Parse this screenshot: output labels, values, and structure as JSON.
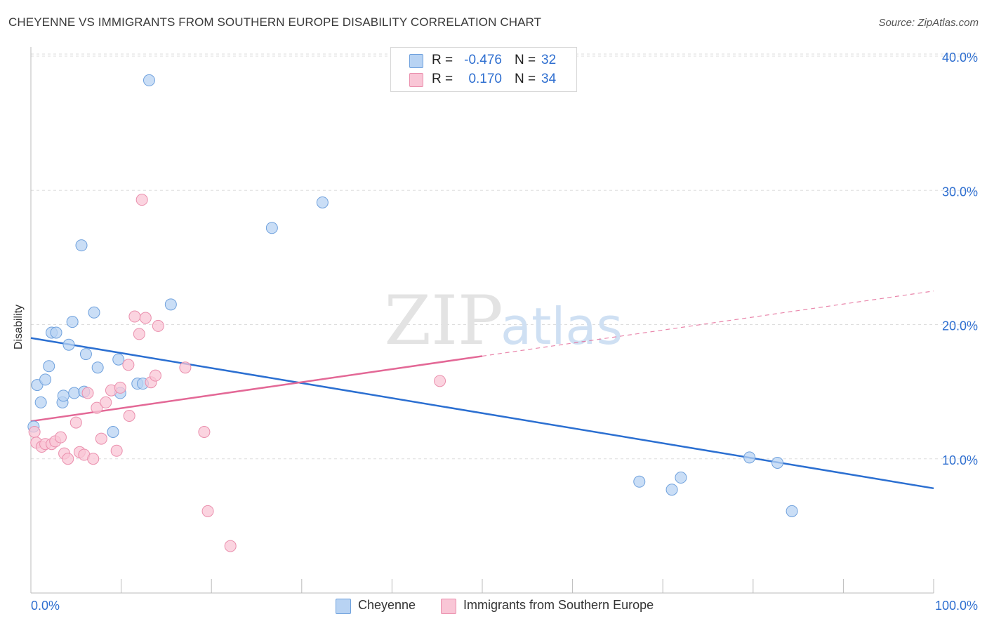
{
  "title": "CHEYENNE VS IMMIGRANTS FROM SOUTHERN EUROPE DISABILITY CORRELATION CHART",
  "source": "Source: ZipAtlas.com",
  "watermark": {
    "zip": "ZIP",
    "atlas": "atlas"
  },
  "legend": {
    "rows": [
      {
        "r_label": "R =",
        "r_value": "-0.476",
        "n_label": "N =",
        "n_value": "32"
      },
      {
        "r_label": "R =",
        "r_value": "0.170",
        "n_label": "N =",
        "n_value": "34"
      }
    ]
  },
  "colors": {
    "blue_fill": "#b8d3f3",
    "blue_stroke": "#6fa1dd",
    "blue_line": "#2b6fd1",
    "pink_fill": "#f9c6d6",
    "pink_stroke": "#ea8fad",
    "pink_line": "#e36896",
    "grid": "#dddddd",
    "axis_label": "#2f6fd0"
  },
  "chart_data": {
    "type": "scatter",
    "title": "CHEYENNE VS IMMIGRANTS FROM SOUTHERN EUROPE DISABILITY CORRELATION CHART",
    "xlabel": "",
    "ylabel": "Disability",
    "xlim": [
      0,
      100
    ],
    "ylim": [
      0,
      40
    ],
    "x_tick_labels": [
      "0.0%",
      "100.0%"
    ],
    "y_ticks": [
      10,
      20,
      30,
      40
    ],
    "y_tick_labels": [
      "10.0%",
      "20.0%",
      "30.0%",
      "40.0%"
    ],
    "series": [
      {
        "name": "Cheyenne",
        "r": -0.476,
        "n": 32,
        "points": [
          [
            0.3,
            12.4
          ],
          [
            0.7,
            15.5
          ],
          [
            1.1,
            14.2
          ],
          [
            1.6,
            15.9
          ],
          [
            2.0,
            16.9
          ],
          [
            2.3,
            19.4
          ],
          [
            2.8,
            19.4
          ],
          [
            3.5,
            14.2
          ],
          [
            3.6,
            14.7
          ],
          [
            4.2,
            18.5
          ],
          [
            4.6,
            20.2
          ],
          [
            4.8,
            14.9
          ],
          [
            5.6,
            25.9
          ],
          [
            5.9,
            15.0
          ],
          [
            6.1,
            17.8
          ],
          [
            7.0,
            20.9
          ],
          [
            7.4,
            16.8
          ],
          [
            9.1,
            12.0
          ],
          [
            9.7,
            17.4
          ],
          [
            9.9,
            14.9
          ],
          [
            11.8,
            15.6
          ],
          [
            12.4,
            15.6
          ],
          [
            13.1,
            38.2
          ],
          [
            15.5,
            21.5
          ],
          [
            26.7,
            27.2
          ],
          [
            32.3,
            29.1
          ],
          [
            67.4,
            8.3
          ],
          [
            71.0,
            7.7
          ],
          [
            72.0,
            8.6
          ],
          [
            79.6,
            10.1
          ],
          [
            82.7,
            9.7
          ],
          [
            84.3,
            6.1
          ]
        ],
        "trend": {
          "x0": 0,
          "y0": 19.0,
          "x1": 100,
          "y1": 7.8
        }
      },
      {
        "name": "Immigrants from Southern Europe",
        "r": 0.17,
        "n": 34,
        "points": [
          [
            0.4,
            12.0
          ],
          [
            0.6,
            11.2
          ],
          [
            1.2,
            10.9
          ],
          [
            1.6,
            11.1
          ],
          [
            2.3,
            11.1
          ],
          [
            2.7,
            11.3
          ],
          [
            3.3,
            11.6
          ],
          [
            3.7,
            10.4
          ],
          [
            4.1,
            10.0
          ],
          [
            5.0,
            12.7
          ],
          [
            5.4,
            10.5
          ],
          [
            5.9,
            10.3
          ],
          [
            6.3,
            14.9
          ],
          [
            6.9,
            10.0
          ],
          [
            7.3,
            13.8
          ],
          [
            7.8,
            11.5
          ],
          [
            8.3,
            14.2
          ],
          [
            8.9,
            15.1
          ],
          [
            9.5,
            10.6
          ],
          [
            9.9,
            15.3
          ],
          [
            10.8,
            17.0
          ],
          [
            10.9,
            13.2
          ],
          [
            11.5,
            20.6
          ],
          [
            12.0,
            19.3
          ],
          [
            12.3,
            29.3
          ],
          [
            12.7,
            20.5
          ],
          [
            13.3,
            15.7
          ],
          [
            13.8,
            16.2
          ],
          [
            14.1,
            19.9
          ],
          [
            17.1,
            16.8
          ],
          [
            19.2,
            12.0
          ],
          [
            19.6,
            6.1
          ],
          [
            22.1,
            3.5
          ],
          [
            45.3,
            15.8
          ]
        ],
        "trend": {
          "x0": 0,
          "y0": 12.8,
          "x1": 100,
          "y1": 22.5,
          "solid_until_x": 50
        }
      }
    ]
  },
  "bottom_legend": [
    "Cheyenne",
    "Immigrants from Southern Europe"
  ]
}
